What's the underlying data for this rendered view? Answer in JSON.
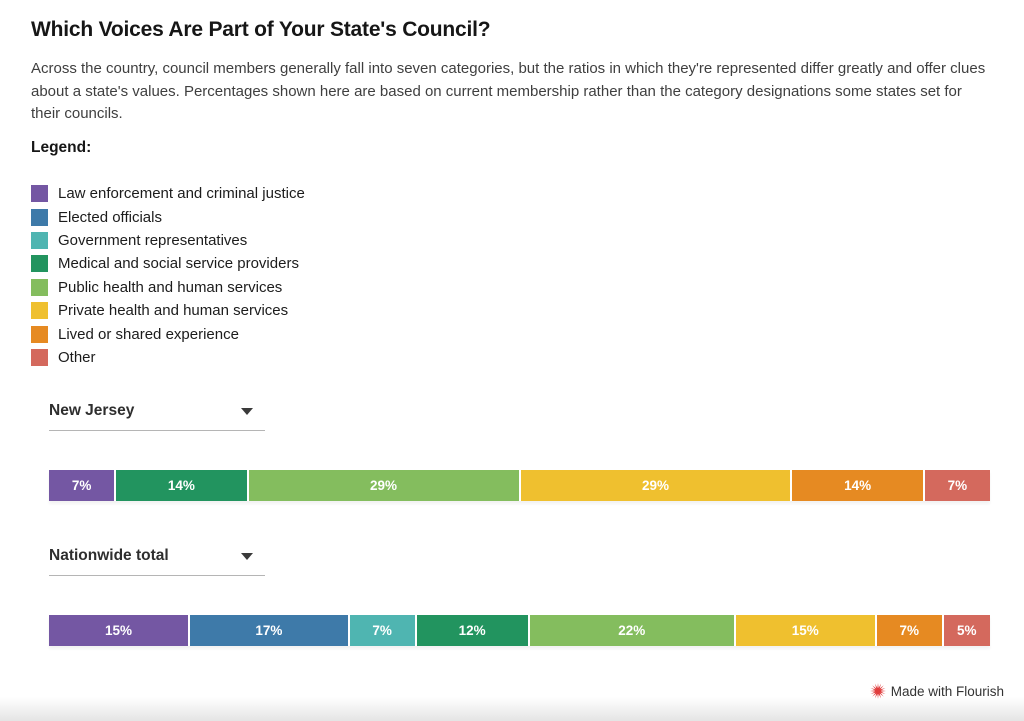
{
  "header": {
    "title": "Which Voices Are Part of Your State's Council?",
    "description": "Across the country, council members generally fall into seven categories, but the ratios in which they're represented differ greatly and offer clues about a state's values. Percentages shown here are based on current membership rather than the category designations some states set for their councils."
  },
  "legend": {
    "label": "Legend:",
    "items": [
      {
        "label": "Law enforcement and criminal justice",
        "color": "#7457a3"
      },
      {
        "label": "Elected officials",
        "color": "#3e7aa9"
      },
      {
        "label": "Government representatives",
        "color": "#4fb5b1"
      },
      {
        "label": "Medical and social service providers",
        "color": "#22945f"
      },
      {
        "label": "Public health and human services",
        "color": "#84bd5e"
      },
      {
        "label": "Private health and human services",
        "color": "#efc02f"
      },
      {
        "label": "Lived or shared experience",
        "color": "#e68a22"
      },
      {
        "label": "Other",
        "color": "#d4695d"
      }
    ]
  },
  "chart_data": [
    {
      "type": "bar",
      "variant": "stacked-horizontal",
      "selector_value": "New Jersey",
      "unit": "%",
      "xlim": [
        0,
        100
      ],
      "segments": [
        {
          "category": "Law enforcement and criminal justice",
          "value": 7,
          "label": "7%",
          "color": "#7457a3"
        },
        {
          "category": "Medical and social service providers",
          "value": 14,
          "label": "14%",
          "color": "#22945f"
        },
        {
          "category": "Public health and human services",
          "value": 29,
          "label": "29%",
          "color": "#84bd5e"
        },
        {
          "category": "Private health and human services",
          "value": 29,
          "label": "29%",
          "color": "#efc02f"
        },
        {
          "category": "Lived or shared experience",
          "value": 14,
          "label": "14%",
          "color": "#e68a22"
        },
        {
          "category": "Other",
          "value": 7,
          "label": "7%",
          "color": "#d4695d"
        }
      ]
    },
    {
      "type": "bar",
      "variant": "stacked-horizontal",
      "selector_value": "Nationwide total",
      "unit": "%",
      "xlim": [
        0,
        100
      ],
      "segments": [
        {
          "category": "Law enforcement and criminal justice",
          "value": 15,
          "label": "15%",
          "color": "#7457a3"
        },
        {
          "category": "Elected officials",
          "value": 17,
          "label": "17%",
          "color": "#3e7aa9"
        },
        {
          "category": "Government representatives",
          "value": 7,
          "label": "7%",
          "color": "#4fb5b1"
        },
        {
          "category": "Medical and social service providers",
          "value": 12,
          "label": "12%",
          "color": "#22945f"
        },
        {
          "category": "Public health and human services",
          "value": 22,
          "label": "22%",
          "color": "#84bd5e"
        },
        {
          "category": "Private health and human services",
          "value": 15,
          "label": "15%",
          "color": "#efc02f"
        },
        {
          "category": "Lived or shared experience",
          "value": 7,
          "label": "7%",
          "color": "#e68a22"
        },
        {
          "category": "Other",
          "value": 5,
          "label": "5%",
          "color": "#d4695d"
        }
      ]
    }
  ],
  "footer": {
    "attribution": "Made with Flourish",
    "icon_color": "#e03d3d"
  }
}
